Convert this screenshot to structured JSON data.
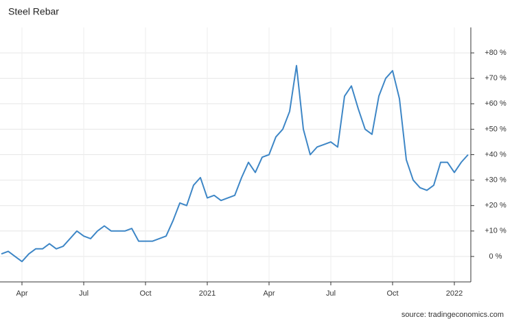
{
  "chart_data": {
    "type": "line",
    "title": "Steel Rebar",
    "source": "source: tradingeconomics.com",
    "categories": [
      null,
      null,
      null,
      "Apr",
      null,
      null,
      null,
      null,
      null,
      null,
      null,
      null,
      "Jul",
      null,
      null,
      null,
      null,
      null,
      null,
      null,
      null,
      "Oct",
      null,
      null,
      null,
      null,
      null,
      null,
      null,
      null,
      "2021",
      null,
      null,
      null,
      null,
      null,
      null,
      null,
      null,
      "Apr",
      null,
      null,
      null,
      null,
      null,
      null,
      null,
      null,
      "Jul",
      null,
      null,
      null,
      null,
      null,
      null,
      null,
      null,
      "Oct",
      null,
      null,
      null,
      null,
      null,
      null,
      null,
      null,
      "2022",
      null,
      null
    ],
    "series": [
      {
        "name": "Steel Rebar",
        "color": "#3d86c6",
        "values": [
          1,
          2,
          0,
          -2,
          1,
          3,
          3,
          5,
          3,
          4,
          7,
          10,
          8,
          7,
          10,
          12,
          10,
          10,
          10,
          11,
          6,
          6,
          6,
          7,
          8,
          14,
          21,
          20,
          28,
          31,
          23,
          24,
          22,
          23,
          24,
          31,
          37,
          33,
          39,
          40,
          47,
          50,
          57,
          75,
          50,
          40,
          43,
          44,
          45,
          43,
          63,
          67,
          58,
          50,
          48,
          63,
          70,
          73,
          62,
          38,
          30,
          27,
          26,
          28,
          37,
          37,
          33,
          37,
          40
        ]
      }
    ],
    "ylim": [
      -10,
      90
    ],
    "yticks": [
      {
        "value": 0,
        "label": "0 %"
      },
      {
        "value": 10,
        "label": "+10 %"
      },
      {
        "value": 20,
        "label": "+20 %"
      },
      {
        "value": 30,
        "label": "+30 %"
      },
      {
        "value": 40,
        "label": "+40 %"
      },
      {
        "value": 50,
        "label": "+50 %"
      },
      {
        "value": 60,
        "label": "+60 %"
      },
      {
        "value": 70,
        "label": "+70 %"
      },
      {
        "value": 80,
        "label": "+80 %"
      }
    ],
    "grid": true
  }
}
